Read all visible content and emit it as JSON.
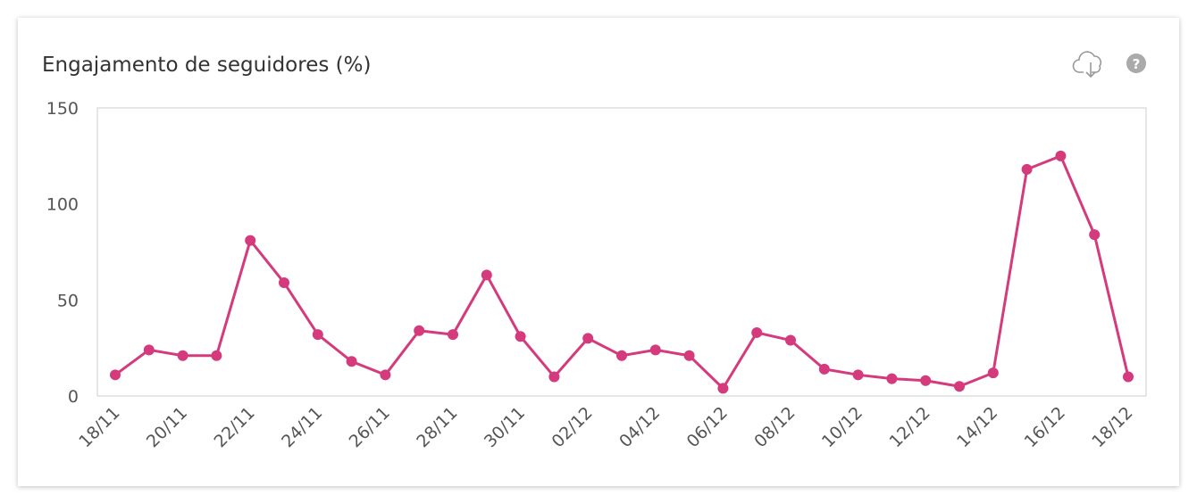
{
  "chart_data": {
    "type": "line",
    "title": "Engajamento de seguidores (%)",
    "categories": [
      "18/11",
      null,
      "20/11",
      null,
      "22/11",
      null,
      "24/11",
      null,
      "26/11",
      null,
      "28/11",
      null,
      "30/11",
      null,
      "02/12",
      null,
      "04/12",
      null,
      "06/12",
      null,
      "08/12",
      null,
      "10/12",
      null,
      "12/12",
      null,
      "14/12",
      null,
      "16/12",
      null,
      "18/12"
    ],
    "series": [
      {
        "color": "#d43a7c",
        "values": [
          11,
          24,
          21,
          21,
          81,
          59,
          32,
          18,
          11,
          34,
          32,
          63,
          31,
          10,
          30,
          21,
          24,
          21,
          4,
          33,
          29,
          14,
          11,
          9,
          8,
          5,
          12,
          118,
          125,
          84,
          10
        ]
      }
    ],
    "ylim": [
      0,
      150
    ],
    "yticks": [
      0,
      50,
      100,
      150
    ],
    "grid": false
  }
}
